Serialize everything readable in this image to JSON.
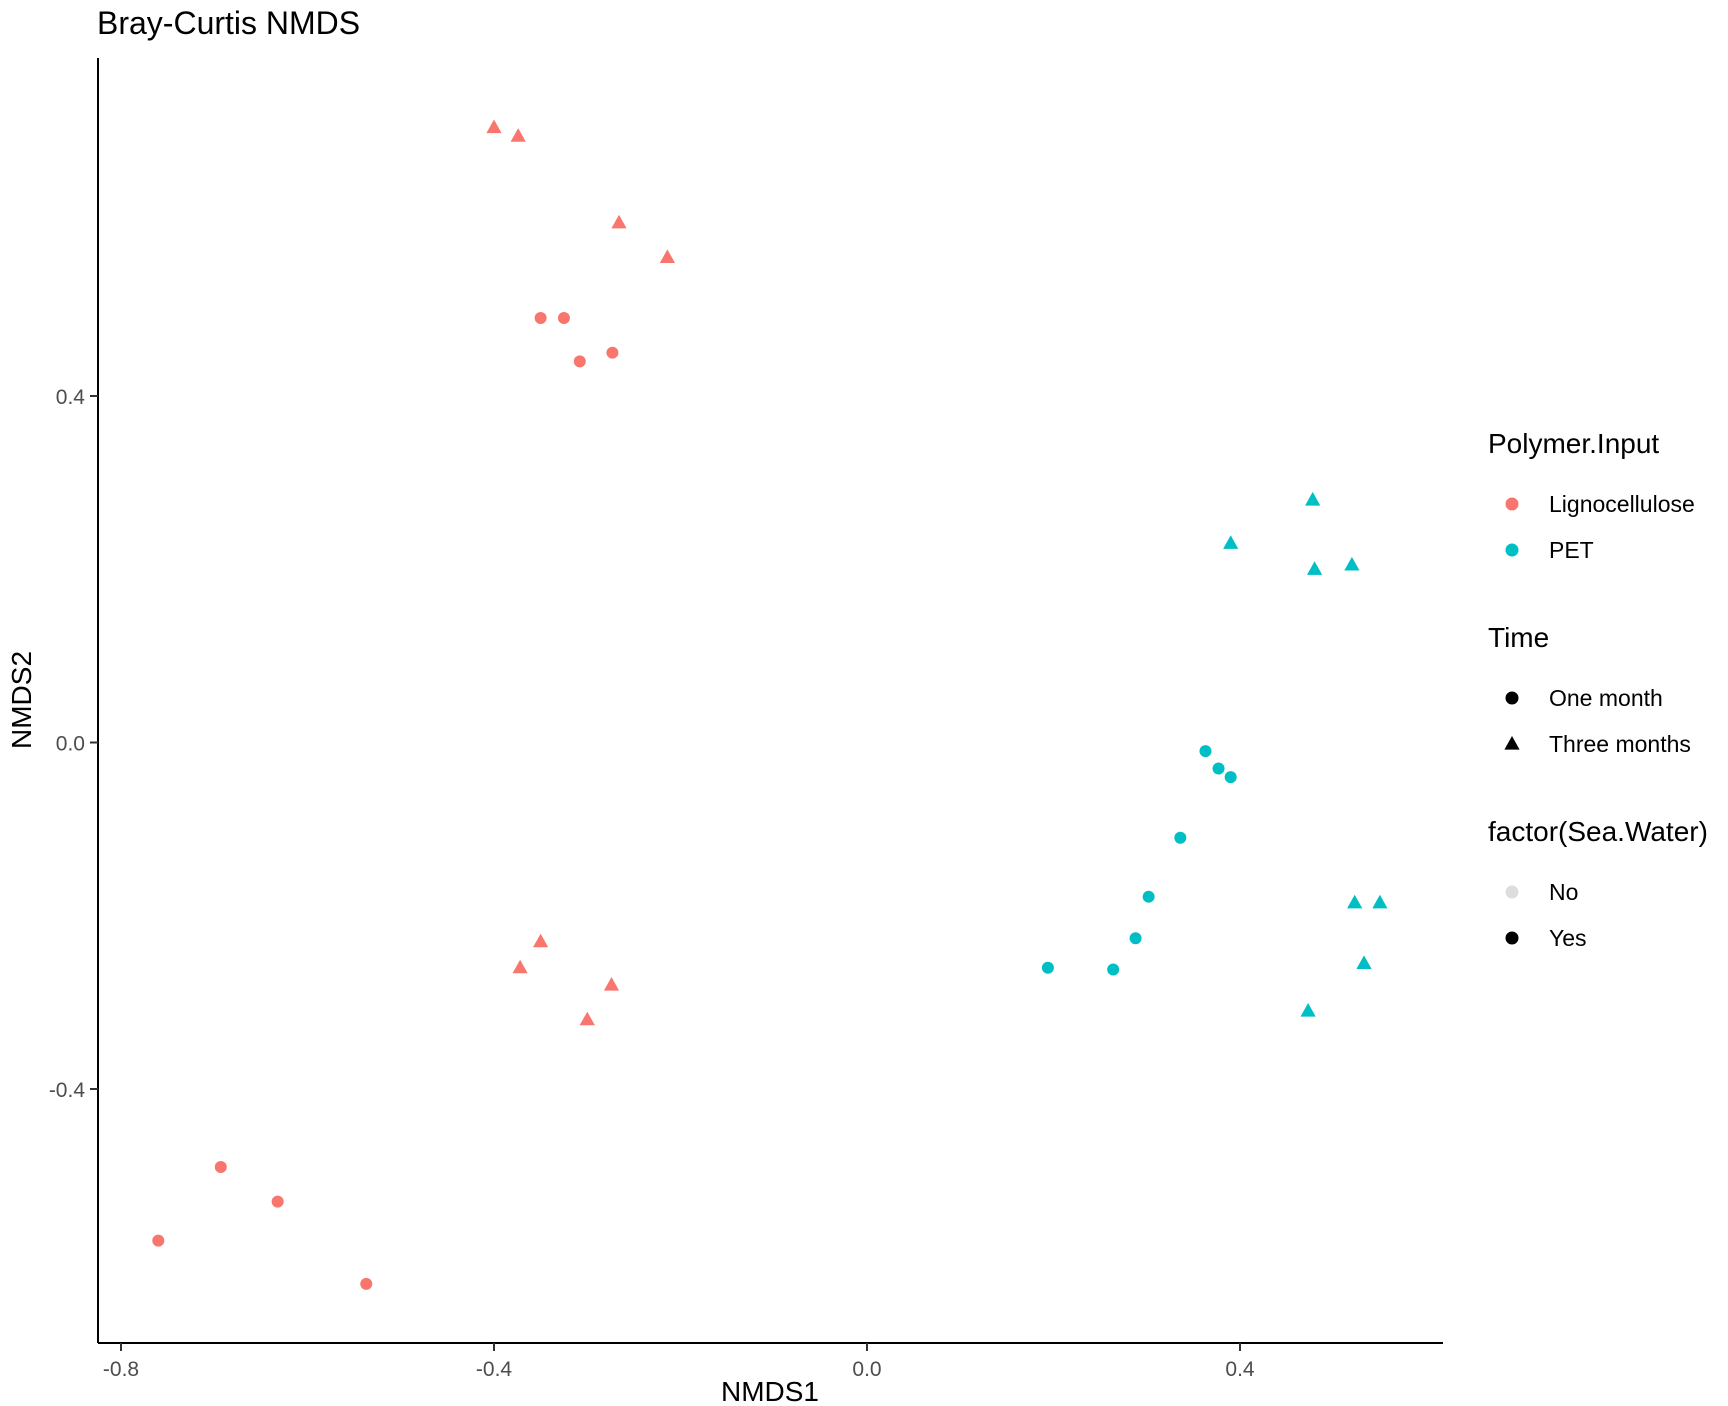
{
  "chart_data": {
    "type": "scatter",
    "title": "Bray-Curtis NMDS",
    "xlabel": "NMDS1",
    "ylabel": "NMDS2",
    "xlim": [
      -0.8,
      0.6
    ],
    "ylim": [
      -0.7,
      0.76
    ],
    "xticks": [
      -0.8,
      -0.4,
      0.0,
      0.4
    ],
    "xtick_labels": [
      "-0.8",
      "-0.4",
      "0.0",
      "0.4"
    ],
    "yticks": [
      -0.4,
      0.0,
      0.4
    ],
    "ytick_labels": [
      "-0.4",
      "0.0",
      "0.4"
    ],
    "grid": false,
    "legend_position": "right",
    "colors": {
      "Lignocellulose": "#F8766D",
      "PET": "#00BFC4"
    },
    "legends": [
      {
        "title": "Polymer.Input",
        "items": [
          {
            "label": "Lignocellulose",
            "shape": "circle",
            "color": "#F8766D"
          },
          {
            "label": "PET",
            "shape": "circle",
            "color": "#00BFC4"
          }
        ]
      },
      {
        "title": "Time",
        "items": [
          {
            "label": "One month",
            "shape": "circle",
            "color": "#000000"
          },
          {
            "label": "Three months",
            "shape": "triangle",
            "color": "#000000"
          }
        ]
      },
      {
        "title": "factor(Sea.Water)",
        "items": [
          {
            "label": "No",
            "shape": "circle",
            "color": "#DDDDDD"
          },
          {
            "label": "Yes",
            "shape": "circle",
            "color": "#000000"
          }
        ]
      }
    ],
    "series": [
      {
        "polymer": "Lignocellulose",
        "time": "Three months",
        "points": [
          [
            -0.4,
            0.71
          ],
          [
            -0.374,
            0.7
          ],
          [
            -0.266,
            0.6
          ],
          [
            -0.214,
            0.56
          ],
          [
            -0.35,
            -0.23
          ],
          [
            -0.372,
            -0.26
          ],
          [
            -0.274,
            -0.28
          ],
          [
            -0.3,
            -0.32
          ]
        ]
      },
      {
        "polymer": "Lignocellulose",
        "time": "One month",
        "points": [
          [
            -0.35,
            0.49
          ],
          [
            -0.325,
            0.49
          ],
          [
            -0.308,
            0.44
          ],
          [
            -0.273,
            0.45
          ],
          [
            -0.693,
            -0.49
          ],
          [
            -0.632,
            -0.53
          ],
          [
            -0.76,
            -0.575
          ],
          [
            -0.537,
            -0.625
          ]
        ]
      },
      {
        "polymer": "PET",
        "time": "Three months",
        "points": [
          [
            0.478,
            0.28
          ],
          [
            0.39,
            0.23
          ],
          [
            0.48,
            0.2
          ],
          [
            0.52,
            0.205
          ],
          [
            0.523,
            -0.185
          ],
          [
            0.55,
            -0.185
          ],
          [
            0.533,
            -0.255
          ],
          [
            0.473,
            -0.31
          ]
        ]
      },
      {
        "polymer": "PET",
        "time": "One month",
        "points": [
          [
            0.363,
            -0.01
          ],
          [
            0.377,
            -0.03
          ],
          [
            0.39,
            -0.04
          ],
          [
            0.336,
            -0.11
          ],
          [
            0.302,
            -0.178
          ],
          [
            0.288,
            -0.226
          ],
          [
            0.194,
            -0.26
          ],
          [
            0.264,
            -0.262
          ]
        ]
      }
    ]
  }
}
